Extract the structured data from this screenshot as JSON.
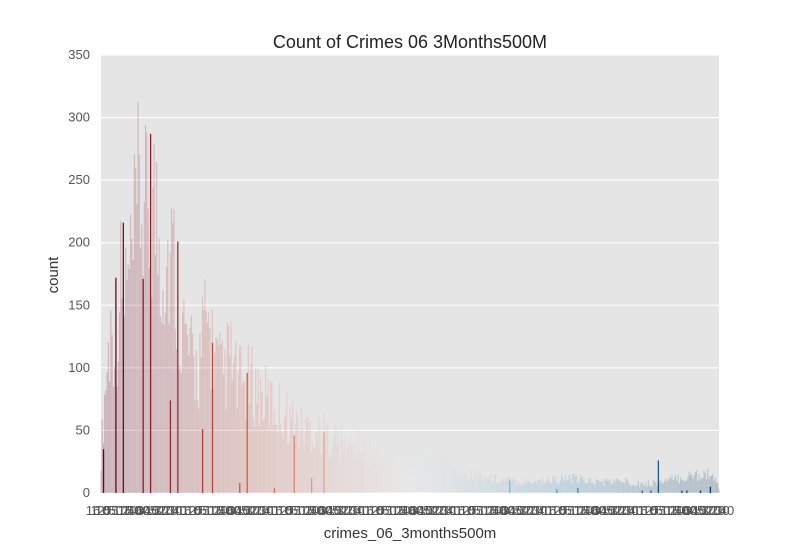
{
  "chart_data": {
    "type": "bar",
    "title": "Count of Crimes 06 3Months500M",
    "xlabel": "crimes_06_3months500m",
    "ylabel": "count",
    "ylim": [
      0,
      350
    ],
    "yticks": [
      0,
      50,
      100,
      150,
      200,
      250,
      300,
      350
    ],
    "grid": true,
    "legend": "none",
    "palette": "RdBu",
    "colors": {
      "background": "#e5e5e5",
      "grid": "#ffffff",
      "dark_red": "#67001f",
      "mid_red": "#d6604d",
      "light": "#f7f7f7",
      "mid_blue": "#4393c3",
      "dark_blue": "#053061"
    },
    "x_range": [
      0,
      499
    ],
    "highlights": [
      {
        "x": 2,
        "value": 35
      },
      {
        "x": 12,
        "value": 172
      },
      {
        "x": 18,
        "value": 216
      },
      {
        "x": 34,
        "value": 171
      },
      {
        "x": 40,
        "value": 287
      },
      {
        "x": 56,
        "value": 74
      },
      {
        "x": 62,
        "value": 201
      },
      {
        "x": 82,
        "value": 51
      },
      {
        "x": 90,
        "value": 120
      },
      {
        "x": 112,
        "value": 8
      },
      {
        "x": 118,
        "value": 96
      },
      {
        "x": 140,
        "value": 4
      },
      {
        "x": 156,
        "value": 46
      },
      {
        "x": 170,
        "value": 12
      },
      {
        "x": 180,
        "value": 49
      },
      {
        "x": 265,
        "value": 4
      },
      {
        "x": 330,
        "value": 10
      },
      {
        "x": 368,
        "value": 3
      },
      {
        "x": 385,
        "value": 4
      },
      {
        "x": 437,
        "value": 2
      },
      {
        "x": 444,
        "value": 2
      },
      {
        "x": 450,
        "value": 26
      },
      {
        "x": 469,
        "value": 2
      },
      {
        "x": 473,
        "value": 2
      },
      {
        "x": 484,
        "value": 2
      },
      {
        "x": 492,
        "value": 5
      }
    ],
    "background_peaks": [
      {
        "x": 0,
        "value": 40
      },
      {
        "x": 4,
        "value": 125
      },
      {
        "x": 8,
        "value": 178
      },
      {
        "x": 14,
        "value": 190
      },
      {
        "x": 16,
        "value": 226
      },
      {
        "x": 22,
        "value": 225
      },
      {
        "x": 26,
        "value": 256
      },
      {
        "x": 30,
        "value": 315
      },
      {
        "x": 32,
        "value": 322
      },
      {
        "x": 36,
        "value": 297
      },
      {
        "x": 42,
        "value": 325
      },
      {
        "x": 44,
        "value": 308
      },
      {
        "x": 48,
        "value": 267
      },
      {
        "x": 52,
        "value": 260
      },
      {
        "x": 58,
        "value": 260
      },
      {
        "x": 66,
        "value": 185
      },
      {
        "x": 72,
        "value": 146
      },
      {
        "x": 78,
        "value": 135
      },
      {
        "x": 84,
        "value": 180
      },
      {
        "x": 86,
        "value": 186
      },
      {
        "x": 94,
        "value": 140
      },
      {
        "x": 98,
        "value": 126
      },
      {
        "x": 104,
        "value": 151
      },
      {
        "x": 110,
        "value": 120
      },
      {
        "x": 124,
        "value": 118
      },
      {
        "x": 130,
        "value": 106
      },
      {
        "x": 136,
        "value": 100
      },
      {
        "x": 146,
        "value": 90
      },
      {
        "x": 160,
        "value": 73
      },
      {
        "x": 176,
        "value": 67
      },
      {
        "x": 190,
        "value": 58
      },
      {
        "x": 200,
        "value": 50
      },
      {
        "x": 210,
        "value": 51
      },
      {
        "x": 225,
        "value": 40
      },
      {
        "x": 240,
        "value": 35
      },
      {
        "x": 255,
        "value": 30
      },
      {
        "x": 270,
        "value": 42
      },
      {
        "x": 285,
        "value": 28
      },
      {
        "x": 300,
        "value": 20
      },
      {
        "x": 320,
        "value": 15
      },
      {
        "x": 340,
        "value": 12
      },
      {
        "x": 360,
        "value": 14
      },
      {
        "x": 380,
        "value": 16
      },
      {
        "x": 400,
        "value": 12
      },
      {
        "x": 420,
        "value": 13
      },
      {
        "x": 440,
        "value": 10
      },
      {
        "x": 460,
        "value": 14
      },
      {
        "x": 480,
        "value": 20
      },
      {
        "x": 490,
        "value": 22
      },
      {
        "x": 499,
        "value": 8
      }
    ],
    "x_tick_labels_visible": [
      "16",
      "12",
      "10",
      "0",
      "55",
      "50",
      "10",
      "10",
      "20",
      "50",
      "400",
      "60",
      "340",
      "15",
      "50",
      "30",
      "20",
      "20",
      "30",
      "40"
    ]
  }
}
